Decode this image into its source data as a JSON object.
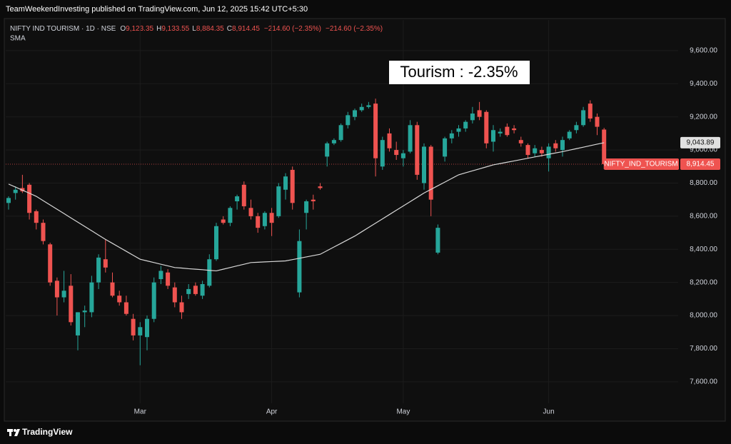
{
  "header": "TeamWeekendInvesting published on TradingView.com, Jun 12, 2025 15:42 UTC+5:30",
  "footer": "TradingView",
  "chart_data": {
    "type": "candlestick",
    "symbol": "NIFTY IND TOURISM · 1D · NSE",
    "ohlc_legend": [
      {
        "key": "O",
        "value": "9,123.35"
      },
      {
        "key": "H",
        "value": "9,133.55"
      },
      {
        "key": "L",
        "value": "8,884.35"
      },
      {
        "key": "C",
        "value": "8,914.45"
      }
    ],
    "change": [
      "−214.60 (−2.35%)",
      "−214.60 (−2.35%)"
    ],
    "annotation": "Tourism : -2.35%",
    "up_color": "#26a69a",
    "down_color": "#ef5350",
    "categories": [
      null,
      null,
      null,
      null,
      null,
      null,
      null,
      null,
      null,
      null,
      null,
      null,
      null,
      null,
      null,
      null,
      null,
      null,
      null,
      "Mar",
      null,
      null,
      null,
      null,
      null,
      null,
      null,
      null,
      null,
      null,
      null,
      null,
      null,
      null,
      null,
      null,
      null,
      null,
      "Apr",
      null,
      null,
      null,
      null,
      null,
      null,
      null,
      null,
      null,
      null,
      null,
      null,
      null,
      null,
      null,
      null,
      null,
      null,
      "May",
      null,
      null,
      null,
      null,
      null,
      null,
      null,
      null,
      null,
      null,
      null,
      null,
      null,
      null,
      null,
      null,
      null,
      null,
      null,
      null,
      "Jun",
      null,
      null,
      null,
      null,
      null,
      null,
      null,
      null
    ],
    "series": [
      {
        "name": "NIFTY_IND_TOURISM",
        "last_label": "8,914.45",
        "open": [
          8680,
          8740,
          8770,
          8790,
          8630,
          8560,
          8430,
          8210,
          8110,
          8180,
          7880,
          8020,
          8020,
          8200,
          8340,
          8200,
          8120,
          8080,
          7980,
          7880,
          7870,
          7980,
          8220,
          8260,
          8170,
          8080,
          8130,
          8180,
          8120,
          8180,
          8340,
          8580,
          8560,
          8690,
          8790,
          8650,
          8600,
          8540,
          8620,
          8600,
          8760,
          8880,
          8140,
          8620,
          8700,
          8780,
          8960,
          9040,
          9060,
          9150,
          9200,
          9240,
          9260,
          9280,
          8900,
          9100,
          9000,
          8950,
          8990,
          9150,
          8800,
          9020,
          8380,
          8960,
          9070,
          9110,
          9130,
          9180,
          9240,
          9230,
          9050,
          9100,
          9140,
          9130,
          9060,
          9030,
          8980,
          9000,
          8950,
          9040,
          9000,
          9070,
          9120,
          9150,
          9280,
          9200,
          9123.35
        ],
        "high": [
          8720,
          8780,
          8850,
          8800,
          8640,
          8580,
          8440,
          8230,
          8270,
          8250,
          8020,
          8060,
          8240,
          8370,
          8460,
          8260,
          8150,
          8120,
          8010,
          7960,
          8000,
          8230,
          8300,
          8280,
          8200,
          8120,
          8190,
          8200,
          8210,
          8370,
          8560,
          8600,
          8660,
          8730,
          8810,
          8700,
          8620,
          8630,
          8650,
          8800,
          8860,
          8900,
          8520,
          8700,
          8730,
          8800,
          9050,
          9070,
          9160,
          9230,
          9250,
          9280,
          9290,
          9310,
          9080,
          9130,
          9050,
          9000,
          9180,
          9170,
          9040,
          9030,
          8550,
          9080,
          9120,
          9150,
          9180,
          9260,
          9290,
          9240,
          9150,
          9130,
          9160,
          9150,
          9080,
          9040,
          9030,
          9020,
          9040,
          9060,
          9080,
          9120,
          9170,
          9260,
          9300,
          9220,
          9133.55
        ],
        "low": [
          8640,
          8700,
          8740,
          8580,
          8520,
          8430,
          8180,
          8000,
          8080,
          7940,
          7790,
          7930,
          7990,
          8160,
          8260,
          8110,
          8060,
          8000,
          7850,
          7700,
          7790,
          7960,
          8190,
          8160,
          8050,
          7980,
          8100,
          8120,
          8100,
          8170,
          8330,
          8550,
          8540,
          8640,
          8640,
          8580,
          8500,
          8520,
          8480,
          8590,
          8700,
          8640,
          8110,
          8520,
          8640,
          8760,
          8900,
          9030,
          9050,
          9130,
          9180,
          9230,
          9250,
          8840,
          8880,
          8990,
          8940,
          8900,
          8980,
          8820,
          8760,
          8600,
          8370,
          8930,
          9040,
          9080,
          9110,
          9160,
          9180,
          9010,
          8990,
          9080,
          9080,
          9100,
          9020,
          8950,
          8960,
          8960,
          8870,
          8990,
          8960,
          9060,
          9100,
          9140,
          9170,
          9090,
          8884.35
        ],
        "close": [
          8710,
          8760,
          8750,
          8620,
          8560,
          8450,
          8200,
          8110,
          8150,
          7960,
          8020,
          8030,
          8200,
          8350,
          8290,
          8120,
          8080,
          8010,
          7880,
          7930,
          7980,
          8200,
          8270,
          8180,
          8080,
          8020,
          8160,
          8130,
          8190,
          8340,
          8540,
          8560,
          8650,
          8720,
          8660,
          8600,
          8530,
          8620,
          8560,
          8780,
          8840,
          8680,
          8450,
          8690,
          8690,
          8770,
          9040,
          9060,
          9150,
          9210,
          9240,
          9260,
          9270,
          8950,
          9060,
          9010,
          8970,
          8980,
          9150,
          8850,
          9020,
          8700,
          8530,
          9070,
          9100,
          9130,
          9170,
          9220,
          9200,
          9040,
          9120,
          9110,
          9090,
          9120,
          9040,
          8970,
          9010,
          8980,
          9020,
          9010,
          9060,
          9110,
          9150,
          9240,
          9190,
          9140,
          8914.45
        ]
      },
      {
        "name": "SMA",
        "color": "#d8d8d8",
        "last_label": "9,043.89",
        "values": [
          8794,
          8776,
          8757,
          8739,
          8720,
          8694,
          8668,
          8642,
          8616,
          8590,
          8564,
          8538,
          8512,
          8486,
          8460,
          8436,
          8412,
          8388,
          8364,
          8340,
          8330,
          8320,
          8310,
          8300,
          8290,
          8287,
          8283,
          8280,
          8277,
          8273,
          8270,
          8280,
          8290,
          8300,
          8310,
          8320,
          8322,
          8324,
          8326,
          8328,
          8330,
          8338,
          8346,
          8354,
          8362,
          8370,
          8392,
          8414,
          8436,
          8458,
          8480,
          8506,
          8532,
          8558,
          8584,
          8610,
          8636,
          8662,
          8688,
          8714,
          8740,
          8762,
          8784,
          8806,
          8828,
          8850,
          8862,
          8874,
          8886,
          8898,
          8910,
          8918,
          8926,
          8934,
          8942,
          8950,
          8958,
          8966,
          8974,
          8982,
          8990,
          8999,
          9008,
          9017,
          9026,
          9035,
          9043.89
        ]
      }
    ],
    "ylim": [
      7470,
      9785
    ],
    "yticks": [
      {
        "value": 7600,
        "label": "7,600.00"
      },
      {
        "value": 7800,
        "label": "7,800.00"
      },
      {
        "value": 8000,
        "label": "8,000.00"
      },
      {
        "value": 8200,
        "label": "8,200.00"
      },
      {
        "value": 8400,
        "label": "8,400.00"
      },
      {
        "value": 8600,
        "label": "8,600.00"
      },
      {
        "value": 8800,
        "label": "8,800.00"
      },
      {
        "value": 9000,
        "label": "9,000.00"
      },
      {
        "value": 9200,
        "label": "9,200.00"
      },
      {
        "value": 9400,
        "label": "9,400.00"
      },
      {
        "value": 9600,
        "label": "9,600.00"
      }
    ],
    "grid": true
  }
}
